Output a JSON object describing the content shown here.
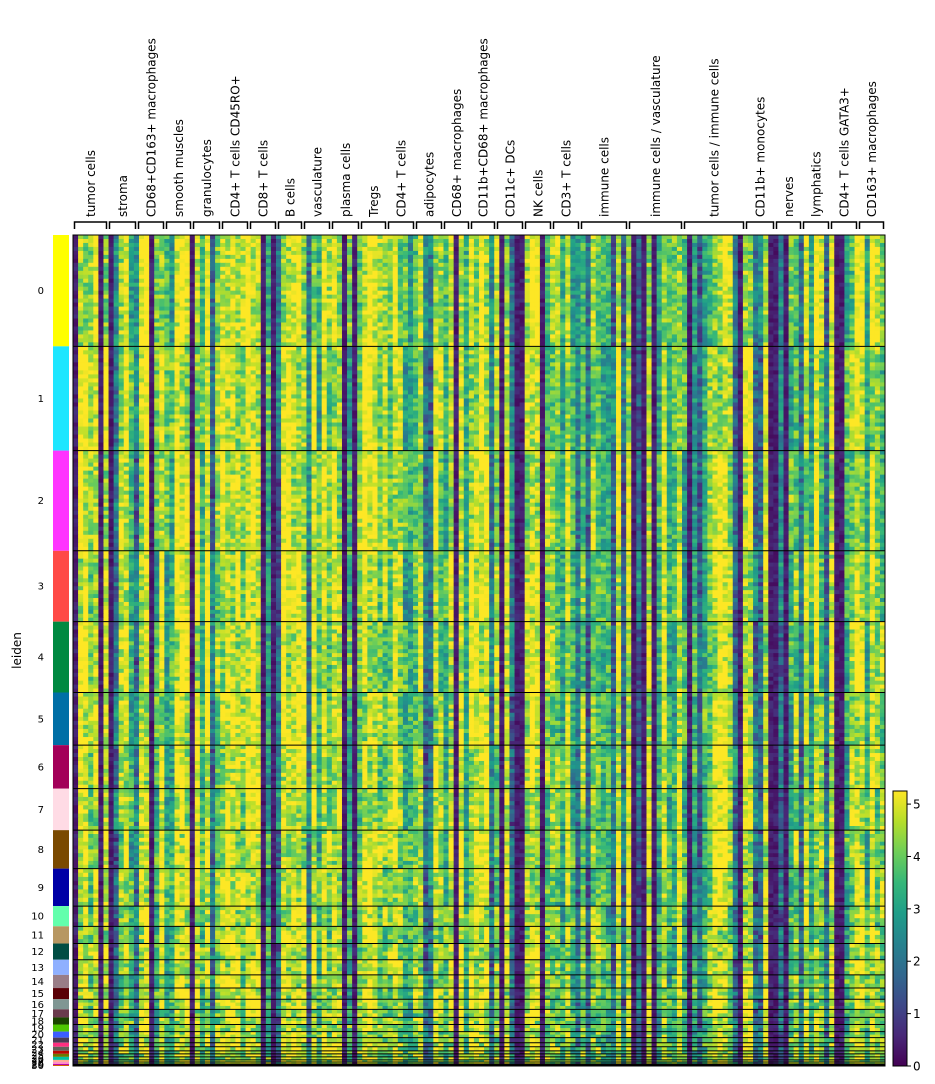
{
  "chart_data": {
    "type": "heatmap",
    "title": "",
    "ylabel": "leiden",
    "x_groups": [
      "tumor cells",
      "stroma",
      "CD68+CD163+ macrophages",
      "smooth muscles",
      "granulocytes",
      "CD4+ T cells CD45RO+",
      "CD8+ T cells",
      "B cells",
      "vasculature",
      "plasma cells",
      "Tregs",
      "CD4+ T cells",
      "adipocytes",
      "CD68+ macrophages",
      "CD11b+CD68+ macrophages",
      "CD11c+ DCs",
      "NK cells",
      "CD3+ T cells",
      "immune cells",
      "immune cells / vasculature",
      "tumor cells / immune cells",
      "CD11b+ monocytes",
      "nerves",
      "lymphatics",
      "CD4+ T cells GATA3+",
      "CD163+ macrophages"
    ],
    "clusters": [
      "0",
      "1",
      "2",
      "3",
      "4",
      "5",
      "6",
      "7",
      "8",
      "9",
      "10",
      "11",
      "12",
      "13",
      "14",
      "15",
      "16",
      "17",
      "18",
      "19",
      "20",
      "21",
      "22",
      "23",
      "24",
      "25",
      "26",
      "27",
      "28",
      "29",
      "30"
    ],
    "cluster_sizes": [
      110,
      103,
      99,
      70,
      70,
      52,
      43,
      41,
      38,
      37,
      20,
      17,
      16,
      15,
      13,
      11,
      10,
      8,
      7,
      7,
      6,
      5,
      4,
      4,
      3,
      3,
      3,
      2,
      2,
      1,
      1
    ],
    "cluster_colors": [
      "#ffff00",
      "#1ce6ff",
      "#ff34ff",
      "#ff4a46",
      "#008941",
      "#006fa6",
      "#a30059",
      "#ffdbe5",
      "#7a4900",
      "#0000a6",
      "#63ffac",
      "#b79762",
      "#004d43",
      "#8fb0ff",
      "#997d87",
      "#5a0007",
      "#809693",
      "#6a3a4c",
      "#1b4400",
      "#4fc601",
      "#3b5dff",
      "#4a3b53",
      "#ff2f80",
      "#61615a",
      "#ba0900",
      "#6b7900",
      "#00c2a0",
      "#ffaa92",
      "#ff90c9",
      "#b903aa",
      "#d16100"
    ],
    "colorbar": {
      "min": 0,
      "max": 5.25,
      "ticks": [
        0,
        1,
        2,
        3,
        4,
        5
      ],
      "colormap": "viridis"
    }
  }
}
